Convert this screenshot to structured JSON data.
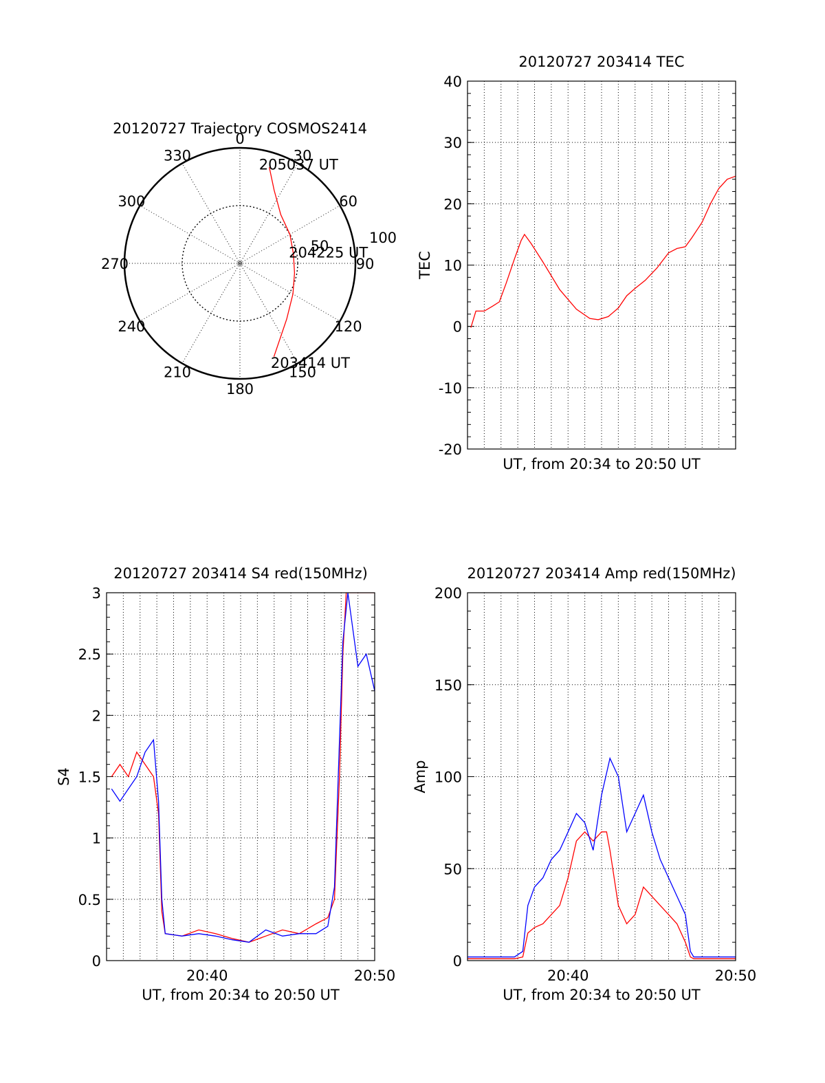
{
  "chart_data": [
    {
      "type": "polar",
      "title": "20120727 Trajectory COSMOS2414",
      "azimuth_labels": [
        "0",
        "30",
        "60",
        "90",
        "120",
        "150",
        "180",
        "210",
        "240",
        "270",
        "300",
        "330"
      ],
      "ring_labels": [
        "50",
        "100"
      ],
      "radial_max": 100,
      "annotations": [
        {
          "text": "205037 UT",
          "az": 14,
          "r": 88
        },
        {
          "text": "204225 UT",
          "az": 79,
          "r": 48
        },
        {
          "text": "203414 UT",
          "az": 160,
          "r": 92
        }
      ],
      "series": [
        {
          "color": "#ff0000",
          "points": [
            [
              17,
              87
            ],
            [
              25,
              70
            ],
            [
              40,
              55
            ],
            [
              60,
              50
            ],
            [
              80,
              47
            ],
            [
              100,
              48
            ],
            [
              120,
              53
            ],
            [
              140,
              63
            ],
            [
              160,
              86
            ]
          ]
        }
      ]
    },
    {
      "type": "line",
      "title": "20120727 203414 TEC",
      "xlabel": "UT, from 20:34 to 20:50 UT",
      "ylabel": "TEC",
      "xlim": [
        0,
        16
      ],
      "ylim": [
        -20,
        40
      ],
      "yticks": [
        "-20",
        "-10",
        "0",
        "10",
        "20",
        "30",
        "40"
      ],
      "xticks": [],
      "grid": true,
      "series": [
        {
          "color": "#ff0000",
          "points": [
            [
              0.2,
              -0.2
            ],
            [
              0.5,
              2.5
            ],
            [
              1.0,
              2.5
            ],
            [
              1.5,
              3.3
            ],
            [
              1.9,
              4.0
            ],
            [
              2.3,
              7.0
            ],
            [
              2.8,
              11.0
            ],
            [
              3.2,
              14.0
            ],
            [
              3.4,
              15.0
            ],
            [
              3.8,
              13.5
            ],
            [
              4.5,
              10.5
            ],
            [
              5.5,
              6.0
            ],
            [
              6.5,
              2.8
            ],
            [
              7.3,
              1.3
            ],
            [
              7.8,
              1.1
            ],
            [
              8.4,
              1.6
            ],
            [
              9.0,
              3.0
            ],
            [
              9.5,
              5.0
            ],
            [
              10.0,
              6.2
            ],
            [
              10.6,
              7.5
            ],
            [
              11.3,
              9.5
            ],
            [
              12.0,
              12.0
            ],
            [
              12.5,
              12.7
            ],
            [
              13.0,
              13.0
            ],
            [
              13.4,
              14.5
            ],
            [
              14.0,
              17.0
            ],
            [
              14.5,
              20.0
            ],
            [
              15.0,
              22.5
            ],
            [
              15.5,
              24.0
            ],
            [
              16.0,
              24.5
            ]
          ]
        }
      ]
    },
    {
      "type": "line",
      "title": "20120727 203414 S4 red(150MHz)",
      "xlabel": "UT, from 20:34 to 20:50 UT",
      "ylabel": "S4",
      "xlim": [
        0,
        16
      ],
      "ylim": [
        0,
        3
      ],
      "yticks": [
        "0",
        "0.5",
        "1",
        "1.5",
        "2",
        "2.5",
        "3"
      ],
      "xticks": [
        "20:40",
        "20:50"
      ],
      "grid": true,
      "series": [
        {
          "color": "#ff0000",
          "points": [
            [
              0.3,
              1.5
            ],
            [
              0.8,
              1.6
            ],
            [
              1.3,
              1.5
            ],
            [
              1.8,
              1.7
            ],
            [
              2.3,
              1.6
            ],
            [
              2.8,
              1.5
            ],
            [
              3.1,
              1.2
            ],
            [
              3.3,
              0.4
            ],
            [
              3.5,
              0.22
            ],
            [
              4.5,
              0.2
            ],
            [
              5.5,
              0.25
            ],
            [
              6.5,
              0.22
            ],
            [
              7.5,
              0.18
            ],
            [
              8.5,
              0.15
            ],
            [
              9.5,
              0.2
            ],
            [
              10.5,
              0.25
            ],
            [
              11.5,
              0.22
            ],
            [
              12.5,
              0.3
            ],
            [
              13.2,
              0.35
            ],
            [
              13.6,
              0.5
            ],
            [
              13.9,
              1.5
            ],
            [
              14.1,
              2.5
            ],
            [
              14.3,
              3.0
            ],
            [
              15.0,
              3.0
            ],
            [
              16.0,
              3.0
            ]
          ]
        },
        {
          "color": "#0000ff",
          "points": [
            [
              0.3,
              1.4
            ],
            [
              0.8,
              1.3
            ],
            [
              1.3,
              1.4
            ],
            [
              1.8,
              1.5
            ],
            [
              2.3,
              1.7
            ],
            [
              2.8,
              1.8
            ],
            [
              3.1,
              1.3
            ],
            [
              3.3,
              0.5
            ],
            [
              3.5,
              0.22
            ],
            [
              4.5,
              0.2
            ],
            [
              5.5,
              0.22
            ],
            [
              6.5,
              0.2
            ],
            [
              7.5,
              0.17
            ],
            [
              8.5,
              0.15
            ],
            [
              9.5,
              0.25
            ],
            [
              10.5,
              0.2
            ],
            [
              11.5,
              0.22
            ],
            [
              12.5,
              0.22
            ],
            [
              13.2,
              0.28
            ],
            [
              13.6,
              0.6
            ],
            [
              13.9,
              1.8
            ],
            [
              14.1,
              2.6
            ],
            [
              14.4,
              3.0
            ],
            [
              15.0,
              2.4
            ],
            [
              15.5,
              2.5
            ],
            [
              16.0,
              2.2
            ]
          ]
        }
      ]
    },
    {
      "type": "line",
      "title": "20120727 203414 Amp red(150MHz)",
      "xlabel": "UT, from 20:34 to 20:50 UT",
      "ylabel": "Amp",
      "xlim": [
        0,
        16
      ],
      "ylim": [
        0,
        200
      ],
      "yticks": [
        "0",
        "50",
        "100",
        "150",
        "200"
      ],
      "xticks": [
        "20:40",
        "20:50"
      ],
      "grid": true,
      "series": [
        {
          "color": "#ff0000",
          "points": [
            [
              0.0,
              1
            ],
            [
              2.8,
              1
            ],
            [
              3.3,
              2
            ],
            [
              3.6,
              15
            ],
            [
              4.0,
              18
            ],
            [
              4.5,
              20
            ],
            [
              5.0,
              25
            ],
            [
              5.5,
              30
            ],
            [
              6.0,
              45
            ],
            [
              6.5,
              65
            ],
            [
              7.0,
              70
            ],
            [
              7.5,
              65
            ],
            [
              8.0,
              70
            ],
            [
              8.3,
              70
            ],
            [
              8.5,
              60
            ],
            [
              9.0,
              30
            ],
            [
              9.5,
              20
            ],
            [
              10.0,
              25
            ],
            [
              10.5,
              40
            ],
            [
              11.0,
              35
            ],
            [
              11.5,
              30
            ],
            [
              12.0,
              25
            ],
            [
              12.5,
              20
            ],
            [
              13.0,
              10
            ],
            [
              13.3,
              2
            ],
            [
              13.5,
              1
            ],
            [
              16.0,
              1
            ]
          ]
        },
        {
          "color": "#0000ff",
          "points": [
            [
              0.0,
              2
            ],
            [
              2.8,
              2
            ],
            [
              3.3,
              5
            ],
            [
              3.6,
              30
            ],
            [
              4.0,
              40
            ],
            [
              4.5,
              45
            ],
            [
              5.0,
              55
            ],
            [
              5.5,
              60
            ],
            [
              6.0,
              70
            ],
            [
              6.5,
              80
            ],
            [
              7.0,
              75
            ],
            [
              7.5,
              60
            ],
            [
              8.0,
              90
            ],
            [
              8.5,
              110
            ],
            [
              9.0,
              100
            ],
            [
              9.5,
              70
            ],
            [
              10.0,
              80
            ],
            [
              10.5,
              90
            ],
            [
              11.0,
              70
            ],
            [
              11.5,
              55
            ],
            [
              12.0,
              45
            ],
            [
              12.5,
              35
            ],
            [
              13.0,
              25
            ],
            [
              13.3,
              5
            ],
            [
              13.5,
              2
            ],
            [
              16.0,
              2
            ]
          ]
        }
      ]
    }
  ]
}
